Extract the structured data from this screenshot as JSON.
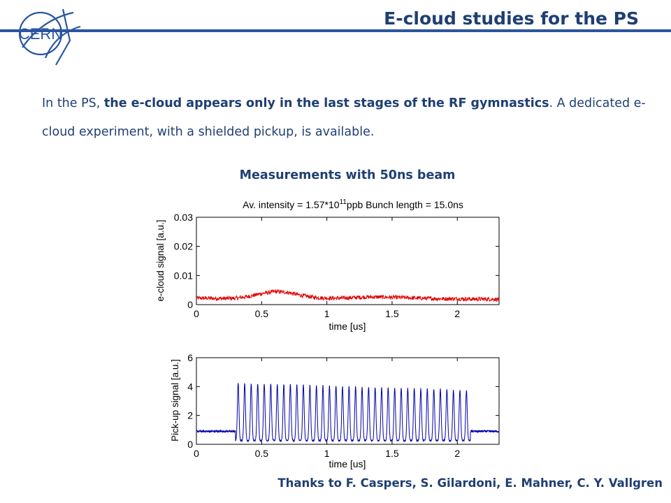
{
  "header": {
    "logo_text": "CERN",
    "title": "E-cloud studies for the PS"
  },
  "intro": {
    "part1": "In the PS, ",
    "bold": "the e-cloud appears only  in the last stages of the RF gymnastics",
    "part2": ". A dedicated e-cloud experiment, with a shielded pickup, is available."
  },
  "measurements_heading": "Measurements with 50ns beam",
  "credits": "Thanks to F. Caspers, S. Gilardoni, E. Mahner, C. Y. Vallgren",
  "colors": {
    "accent": "#1f3f73",
    "ecloud_trace": "#e00000",
    "pickup_trace": "#0000a8"
  },
  "chart_data": [
    {
      "type": "line",
      "title_prefix": "Av. intensity = 1.57*10",
      "title_exponent": "11",
      "title_suffix": "ppb Bunch length = 15.0ns",
      "xlabel": "time [us]",
      "ylabel": "e-cloud signal [a.u.]",
      "xlim": [
        0,
        2.32
      ],
      "ylim": [
        0,
        0.03
      ],
      "x_ticks": [
        "0",
        "0.5",
        "1",
        "1.5",
        "2"
      ],
      "y_ticks": [
        "0",
        "0.01",
        "0.02",
        "0.03"
      ],
      "grid": false,
      "series": [
        {
          "color": "#e00000",
          "x": [
            0,
            0.1,
            0.2,
            0.3,
            0.4,
            0.5,
            0.6,
            0.7,
            0.8,
            0.9,
            1.0,
            1.1,
            1.2,
            1.3,
            1.4,
            1.5,
            1.6,
            1.7,
            1.8,
            1.9,
            2.0,
            2.1,
            2.2,
            2.32
          ],
          "y": [
            0.0022,
            0.0022,
            0.0021,
            0.0022,
            0.0028,
            0.0038,
            0.0045,
            0.0042,
            0.0032,
            0.0025,
            0.0022,
            0.0022,
            0.0024,
            0.0026,
            0.0026,
            0.0025,
            0.0024,
            0.0022,
            0.0021,
            0.002,
            0.002,
            0.0019,
            0.0019,
            0.0018
          ],
          "noise_amplitude": 0.0007
        }
      ]
    },
    {
      "type": "line",
      "xlabel": "time [us]",
      "ylabel": "Pick-up signal [a.u.]",
      "xlim": [
        0,
        2.32
      ],
      "ylim": [
        0,
        6
      ],
      "x_ticks": [
        "0",
        "0.5",
        "1",
        "1.5",
        "2"
      ],
      "y_ticks": [
        "0",
        "2",
        "4",
        "6"
      ],
      "grid": false,
      "series": [
        {
          "color": "#0000a8",
          "baseline": 0.9,
          "bunch_start": 0.32,
          "bunch_spacing": 0.05,
          "bunch_count": 36,
          "peak_first": 4.0,
          "peak_last": 3.5,
          "trough": 0.05,
          "after_bunches_baseline": 0.9
        }
      ]
    }
  ]
}
